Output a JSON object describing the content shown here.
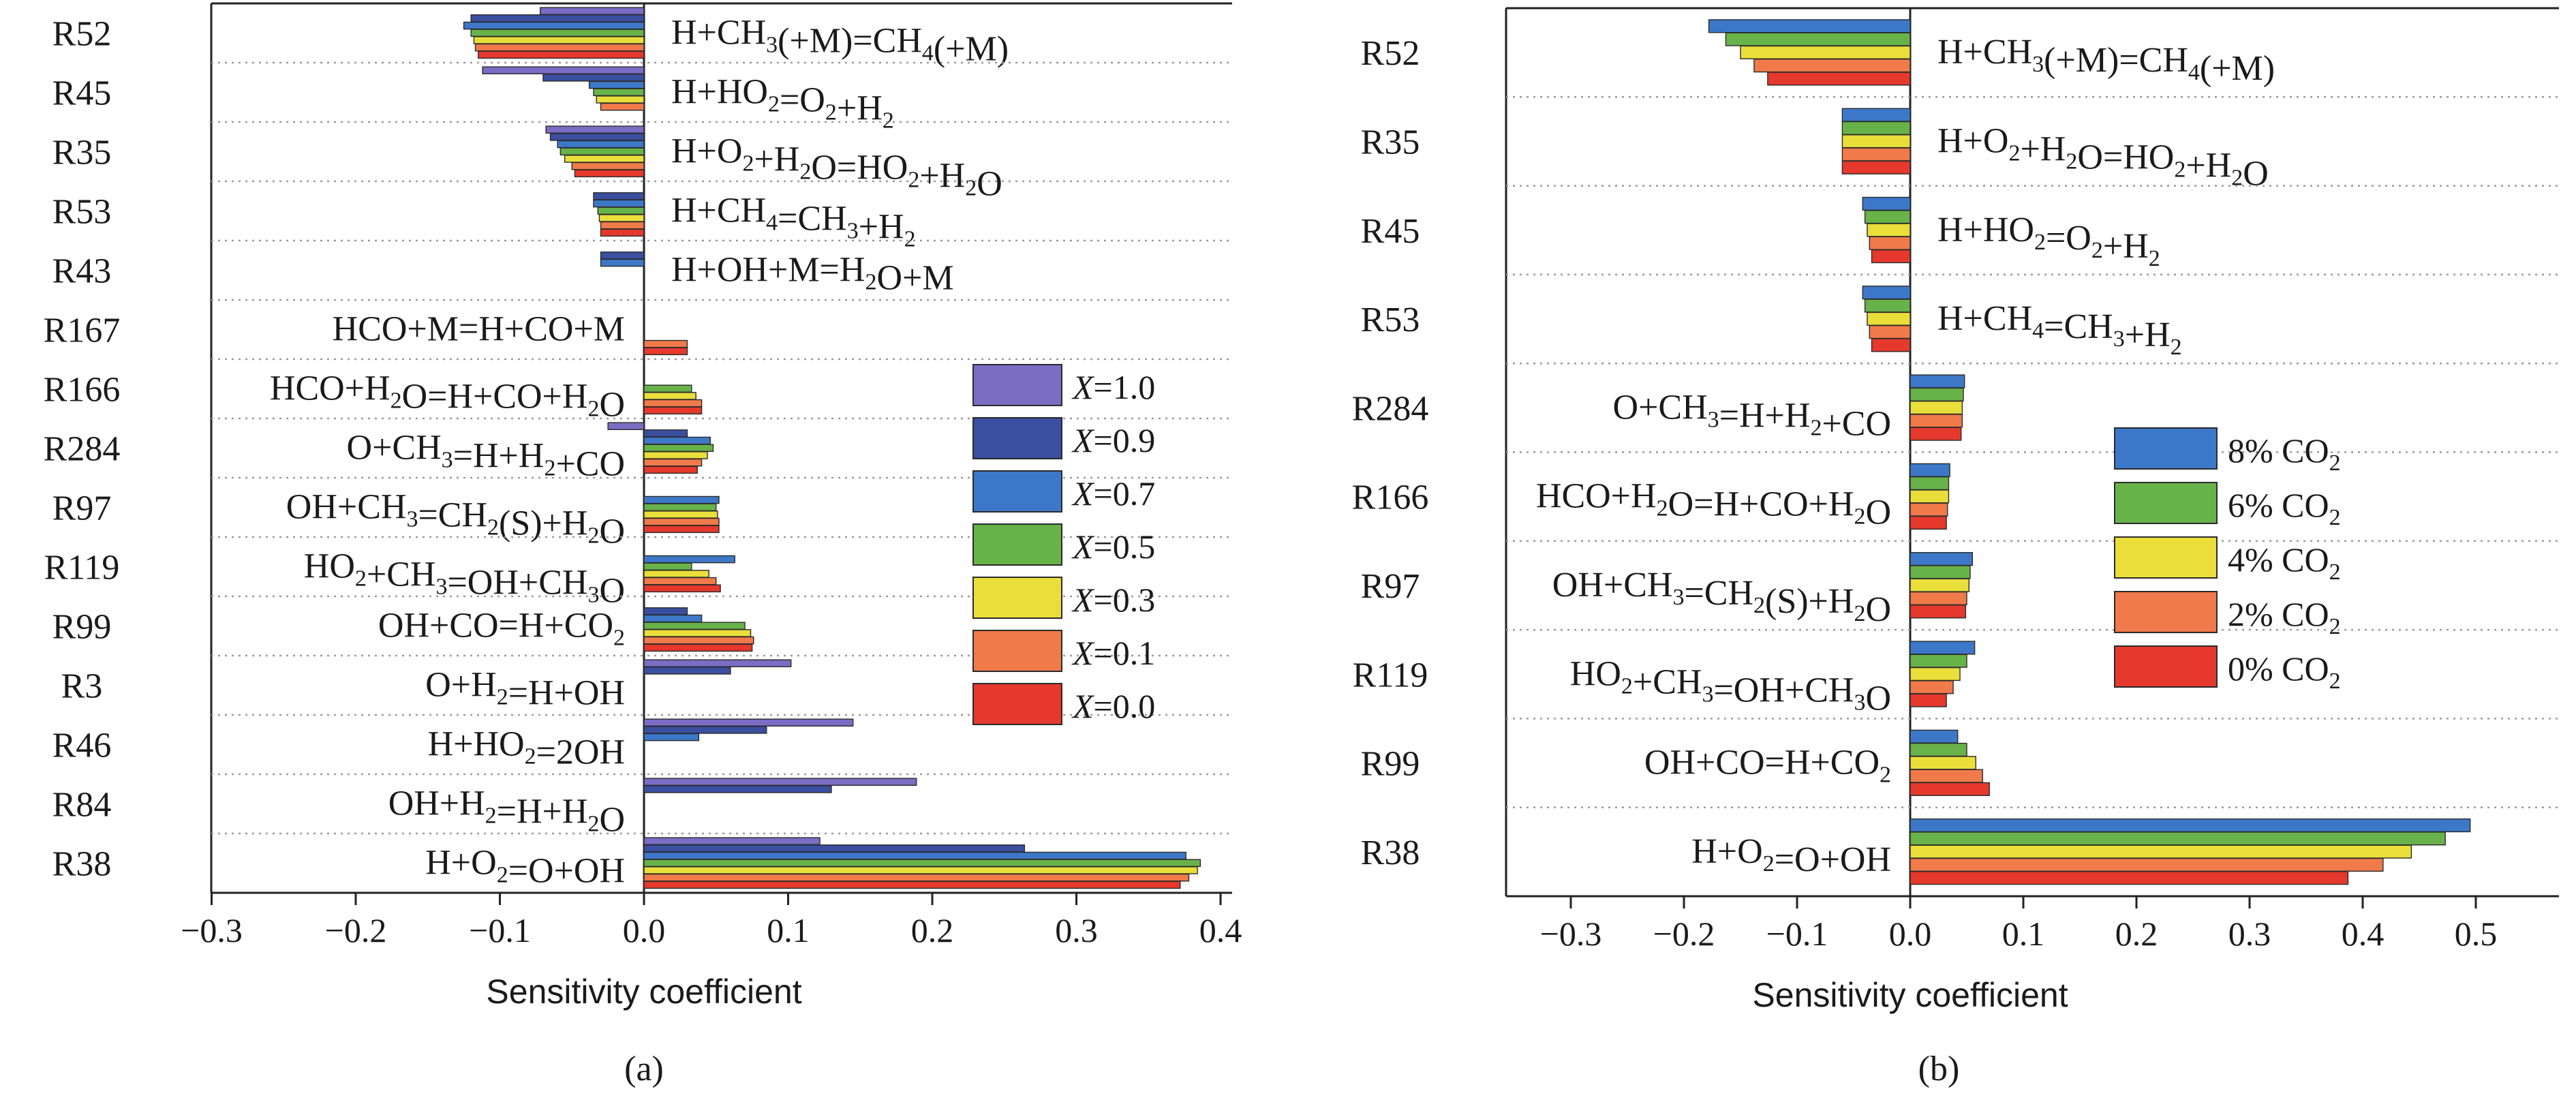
{
  "chart_data": [
    {
      "type": "bar",
      "orientation": "horizontal",
      "panel_label": "(a)",
      "xlabel": "Sensitivity coefficient",
      "xlim": [
        -0.3,
        0.45
      ],
      "xticks": [
        "−0.3",
        "−0.2",
        "−0.1",
        "0.0",
        "0.1",
        "0.2",
        "0.3",
        "0.4"
      ],
      "xtick_values": [
        -0.3,
        -0.2,
        -0.1,
        0.0,
        0.1,
        0.2,
        0.3,
        0.4
      ],
      "grid": "dotted separators between reactions",
      "legend_position": "right",
      "colors": [
        "#7b6cc4",
        "#3a4fa0",
        "#3d78c8",
        "#68b24a",
        "#eadf3a",
        "#f07a4a",
        "#e5392d"
      ],
      "reaction_ids": [
        "R52",
        "R45",
        "R35",
        "R53",
        "R43",
        "R167",
        "R166",
        "R284",
        "R97",
        "R119",
        "R99",
        "R3",
        "R46",
        "R84",
        "R38"
      ],
      "reaction_equations": [
        "H+CH_{3}(+M)=CH_{4}(+M)",
        "H+HO_{2}=O_{2}+H_{2}",
        "H+O_{2}+H_{2}O=HO_{2}+H_{2}O",
        "H+CH_{4}=CH_{3}+H_{2}",
        "H+OH+M=H_{2}O+M",
        "HCO+M=H+CO+M",
        "HCO+H_{2}O=H+CO+H_{2}O",
        "O+CH_{3}=H+H_{2}+CO",
        "OH+CH_{3}=CH_{2}(S)+H_{2}O",
        "HO_{2}+CH_{3}=OH+CH_{3}O",
        "OH+CO=H+CO_{2}",
        "O+H_{2}=H+OH",
        "H+HO_{2}=2OH",
        "OH+H_{2}=H+H_{2}O",
        "H+O_{2}=O+OH"
      ],
      "series": [
        {
          "name": "X=1.0",
          "legend_prefix": "X",
          "legend_suffix": "=1.0",
          "values": [
            -0.072,
            -0.112,
            -0.068,
            0.0,
            0.0,
            0.0,
            0.0,
            -0.025,
            0.0,
            0.0,
            0.0,
            0.102,
            0.145,
            0.189,
            0.122
          ]
        },
        {
          "name": "X=0.9",
          "legend_prefix": "X",
          "legend_suffix": "=0.9",
          "values": [
            -0.12,
            -0.07,
            -0.065,
            -0.035,
            -0.03,
            0.0,
            0.0,
            0.03,
            0.0,
            0.0,
            0.03,
            0.06,
            0.085,
            0.13,
            0.264
          ]
        },
        {
          "name": "X=0.7",
          "legend_prefix": "X",
          "legend_suffix": "=0.7",
          "values": [
            -0.125,
            -0.038,
            -0.06,
            -0.035,
            -0.03,
            0.0,
            0.0,
            0.046,
            0.052,
            0.063,
            0.04,
            0.0,
            0.038,
            0.0,
            0.376
          ]
        },
        {
          "name": "X=0.5",
          "legend_prefix": "X",
          "legend_suffix": "=0.5",
          "values": [
            -0.12,
            -0.035,
            -0.058,
            -0.032,
            0.0,
            0.0,
            0.033,
            0.048,
            0.05,
            0.033,
            0.07,
            0.0,
            0.0,
            0.0,
            0.386
          ]
        },
        {
          "name": "X=0.3",
          "legend_prefix": "X",
          "legend_suffix": "=0.3",
          "values": [
            -0.118,
            -0.033,
            -0.055,
            -0.031,
            0.0,
            0.0,
            0.036,
            0.044,
            0.051,
            0.045,
            0.074,
            0.0,
            0.0,
            0.0,
            0.384
          ]
        },
        {
          "name": "X=0.1",
          "legend_prefix": "X",
          "legend_suffix": "=0.1",
          "values": [
            -0.117,
            -0.03,
            -0.05,
            -0.03,
            0.0,
            0.03,
            0.04,
            0.04,
            0.052,
            0.05,
            0.076,
            0.0,
            0.0,
            0.0,
            0.378
          ]
        },
        {
          "name": "X=0.0",
          "legend_prefix": "X",
          "legend_suffix": "=0.0",
          "values": [
            -0.115,
            0.0,
            -0.048,
            -0.03,
            0.0,
            0.03,
            0.04,
            0.037,
            0.052,
            0.053,
            0.075,
            0.0,
            0.0,
            0.0,
            0.372
          ]
        }
      ]
    },
    {
      "type": "bar",
      "orientation": "horizontal",
      "panel_label": "(b)",
      "xlabel": "Sensitivity coefficient",
      "xlim": [
        -0.35,
        0.55
      ],
      "xticks": [
        "−0.3",
        "−0.2",
        "−0.1",
        "0.0",
        "0.1",
        "0.2",
        "0.3",
        "0.4",
        "0.5"
      ],
      "xtick_values": [
        -0.3,
        -0.2,
        -0.1,
        0.0,
        0.1,
        0.2,
        0.3,
        0.4,
        0.5
      ],
      "grid": "dotted separators between reactions",
      "legend_position": "right",
      "colors": [
        "#3d78c8",
        "#68b24a",
        "#eadf3a",
        "#f07a4a",
        "#e5392d"
      ],
      "reaction_ids": [
        "R52",
        "R35",
        "R45",
        "R53",
        "R284",
        "R166",
        "R97",
        "R119",
        "R99",
        "R38"
      ],
      "reaction_equations": [
        "H+CH_{3}(+M)=CH_{4}(+M)",
        "H+O_{2}+H_{2}O=HO_{2}+H_{2}O",
        "H+HO_{2}=O_{2}+H_{2}",
        "H+CH_{4}=CH_{3}+H_{2}",
        "O+CH_{3}=H+H_{2}+CO",
        "HCO+H_{2}O=H+CO+H_{2}O",
        "OH+CH_{3}=CH_{2}(S)+H_{2}O",
        "HO_{2}+CH_{3}=OH+CH_{3}O",
        "OH+CO=H+CO_{2}",
        "H+O_{2}=O+OH"
      ],
      "series": [
        {
          "name": "8% CO2",
          "legend_prefix": "8% CO",
          "legend_suffix": "2",
          "values": [
            -0.178,
            -0.06,
            -0.042,
            -0.042,
            0.048,
            0.035,
            0.055,
            0.057,
            0.042,
            0.495
          ]
        },
        {
          "name": "6% CO2",
          "legend_prefix": "6% CO",
          "legend_suffix": "2",
          "values": [
            -0.163,
            -0.06,
            -0.04,
            -0.04,
            0.047,
            0.034,
            0.053,
            0.05,
            0.05,
            0.473
          ]
        },
        {
          "name": "4% CO2",
          "legend_prefix": "4% CO",
          "legend_suffix": "2",
          "values": [
            -0.15,
            -0.06,
            -0.038,
            -0.038,
            0.046,
            0.034,
            0.052,
            0.044,
            0.058,
            0.443
          ]
        },
        {
          "name": "2% CO2",
          "legend_prefix": "2% CO",
          "legend_suffix": "2",
          "values": [
            -0.138,
            -0.06,
            -0.036,
            -0.036,
            0.046,
            0.033,
            0.05,
            0.038,
            0.064,
            0.418
          ]
        },
        {
          "name": "0% CO2",
          "legend_prefix": "0% CO",
          "legend_suffix": "2",
          "values": [
            -0.126,
            -0.06,
            -0.034,
            -0.034,
            0.045,
            0.032,
            0.049,
            0.032,
            0.07,
            0.387
          ]
        }
      ]
    }
  ]
}
